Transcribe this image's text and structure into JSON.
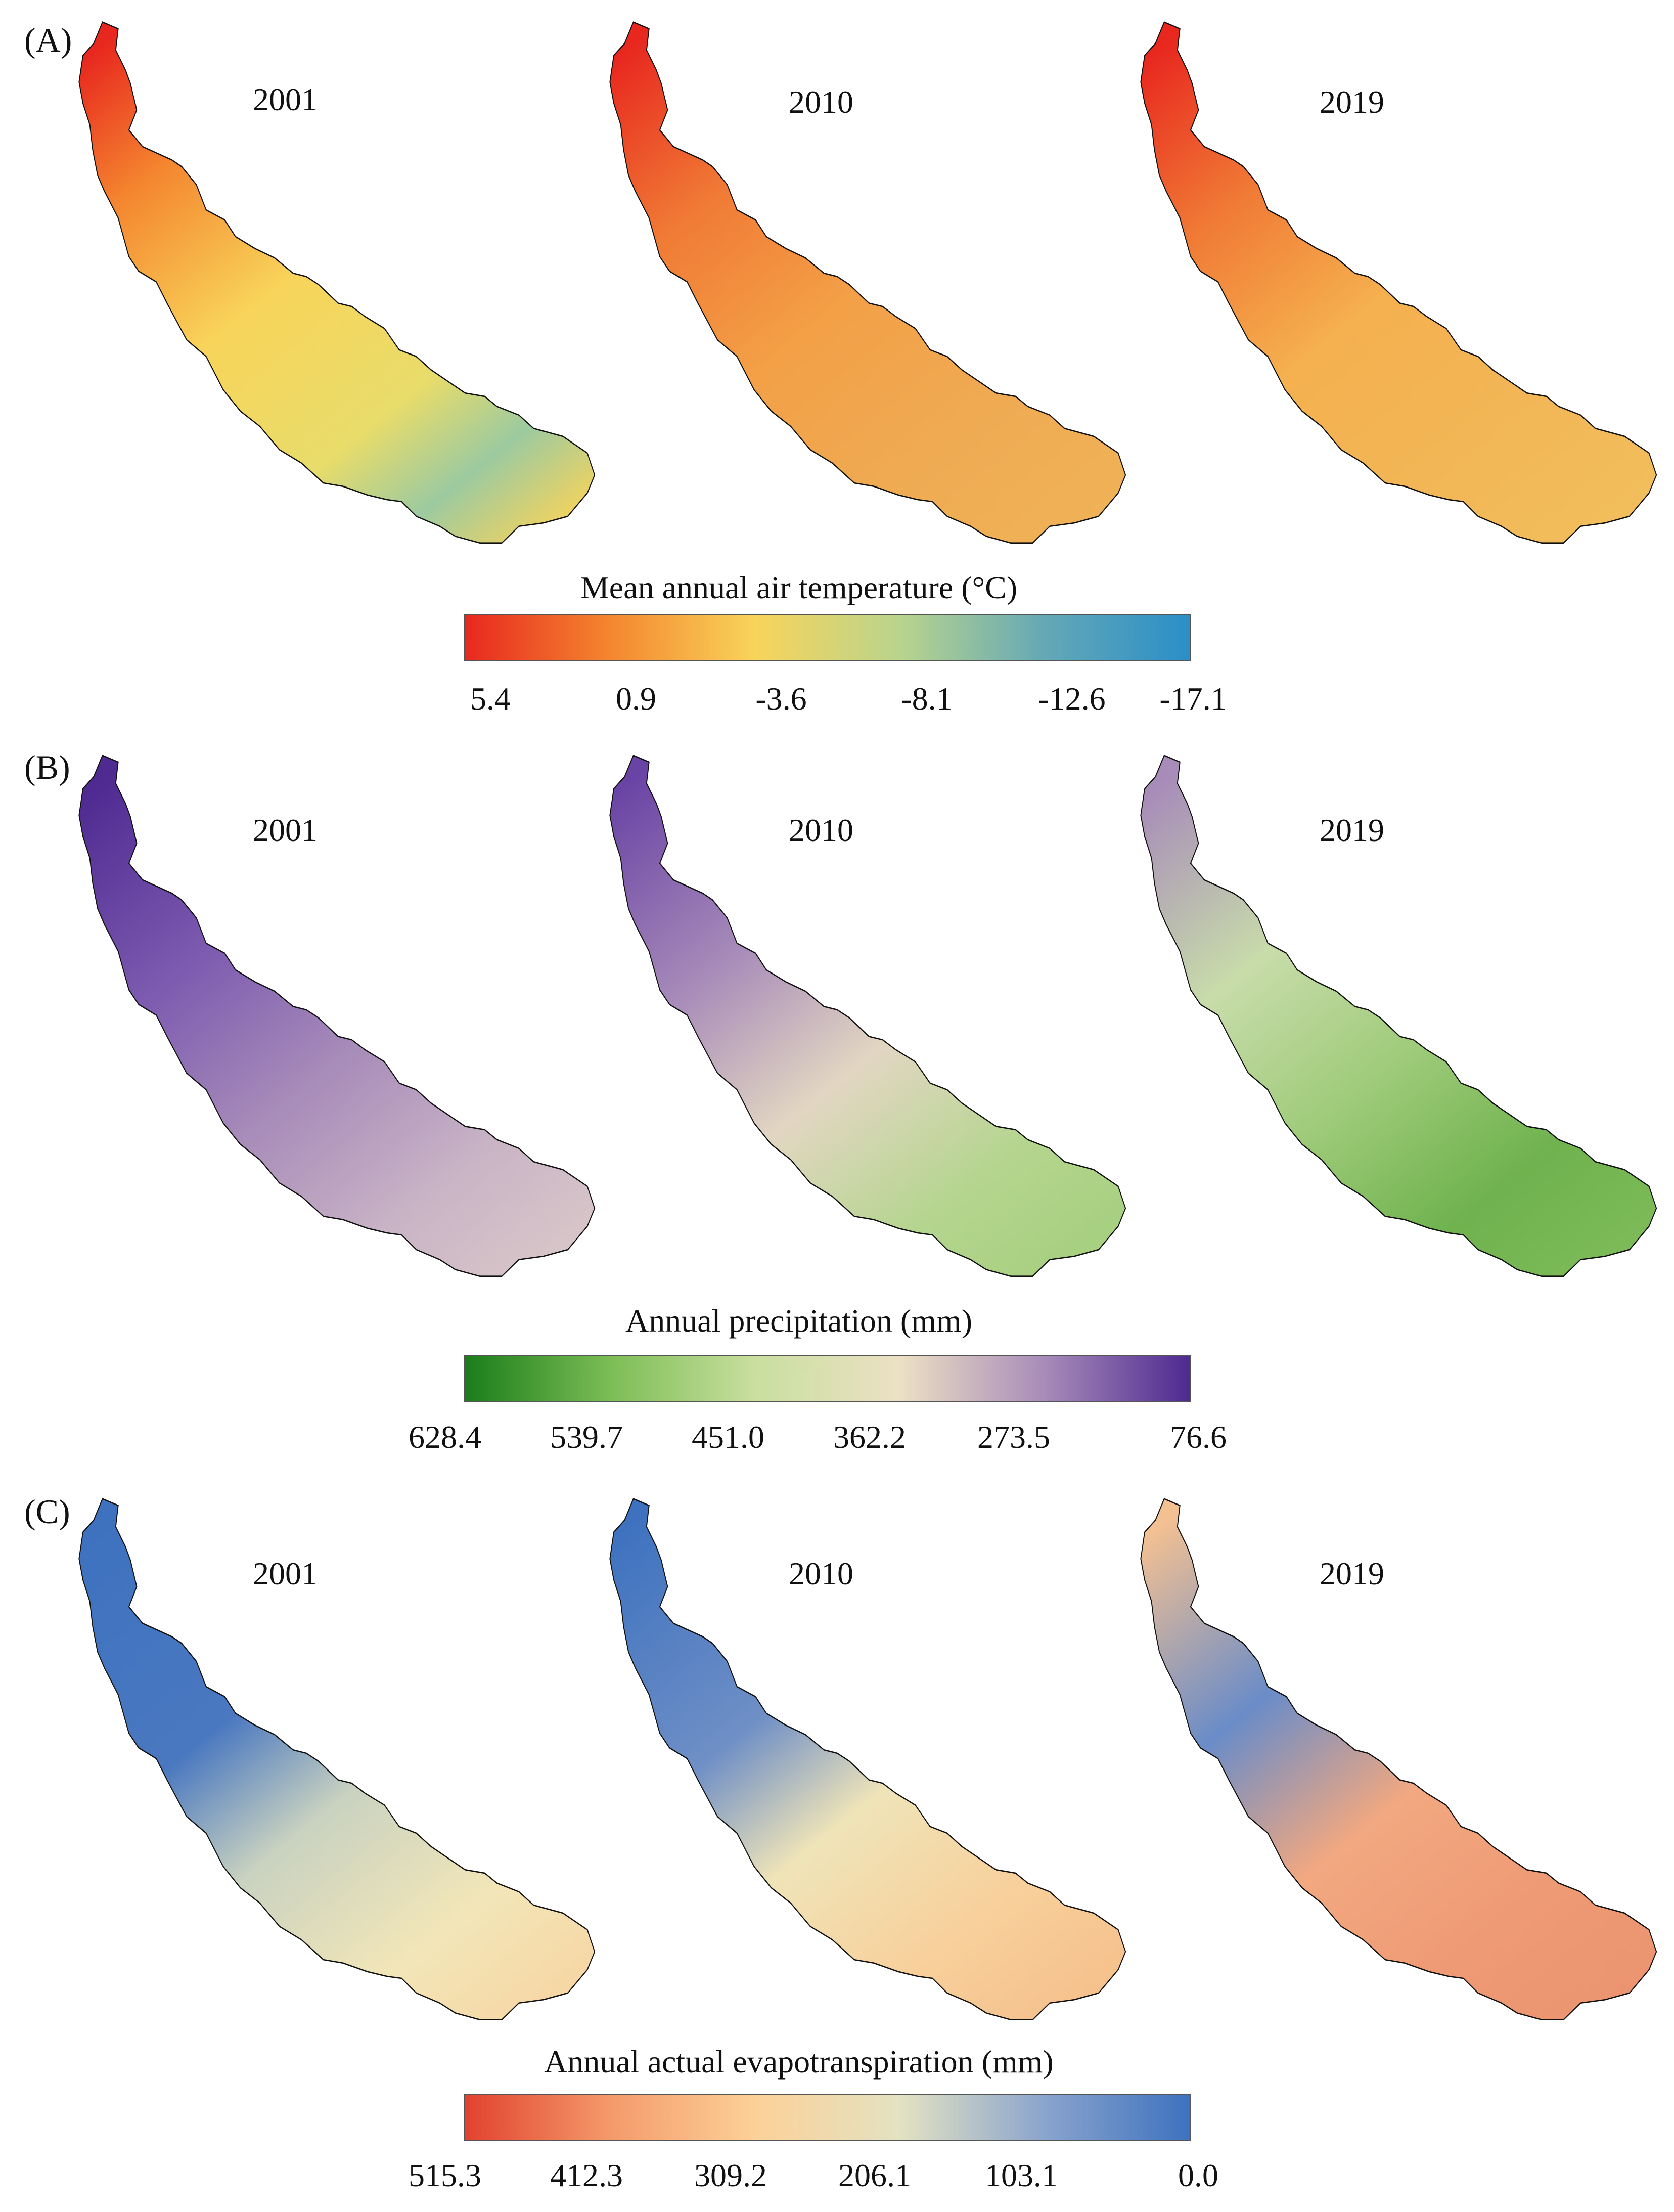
{
  "panels": [
    {
      "label": "(A)",
      "years": [
        "2001",
        "2010",
        "2019"
      ],
      "legend_title": "Mean annual air temperature (°C)",
      "ticks": [
        "5.4",
        "0.9",
        "-3.6",
        "-8.1",
        "-12.6",
        "-17.1"
      ],
      "ramp_colors": [
        "#e8281f",
        "#f4862f",
        "#f8d45a",
        "#b9d48d",
        "#64a8b6",
        "#2a8fc8"
      ]
    },
    {
      "label": "(B)",
      "years": [
        "2001",
        "2010",
        "2019"
      ],
      "legend_title": "Annual precipitation (mm)",
      "ticks": [
        "628.4",
        "539.7",
        "451.0",
        "362.2",
        "273.5",
        "76.6"
      ],
      "ramp_colors": [
        "#1a7d1a",
        "#7cbd55",
        "#c9df9f",
        "#ece0c4",
        "#a78bb9",
        "#4e2a91"
      ]
    },
    {
      "label": "(C)",
      "years": [
        "2001",
        "2010",
        "2019"
      ],
      "legend_title": "Annual actual evapotranspiration (mm)",
      "ticks": [
        "515.3",
        "412.3",
        "309.2",
        "206.1",
        "103.1",
        "0.0"
      ],
      "ramp_colors": [
        "#e2422f",
        "#f49a6a",
        "#fcd198",
        "#e3e2c2",
        "#8aa4cd",
        "#3e72bf"
      ]
    }
  ]
}
